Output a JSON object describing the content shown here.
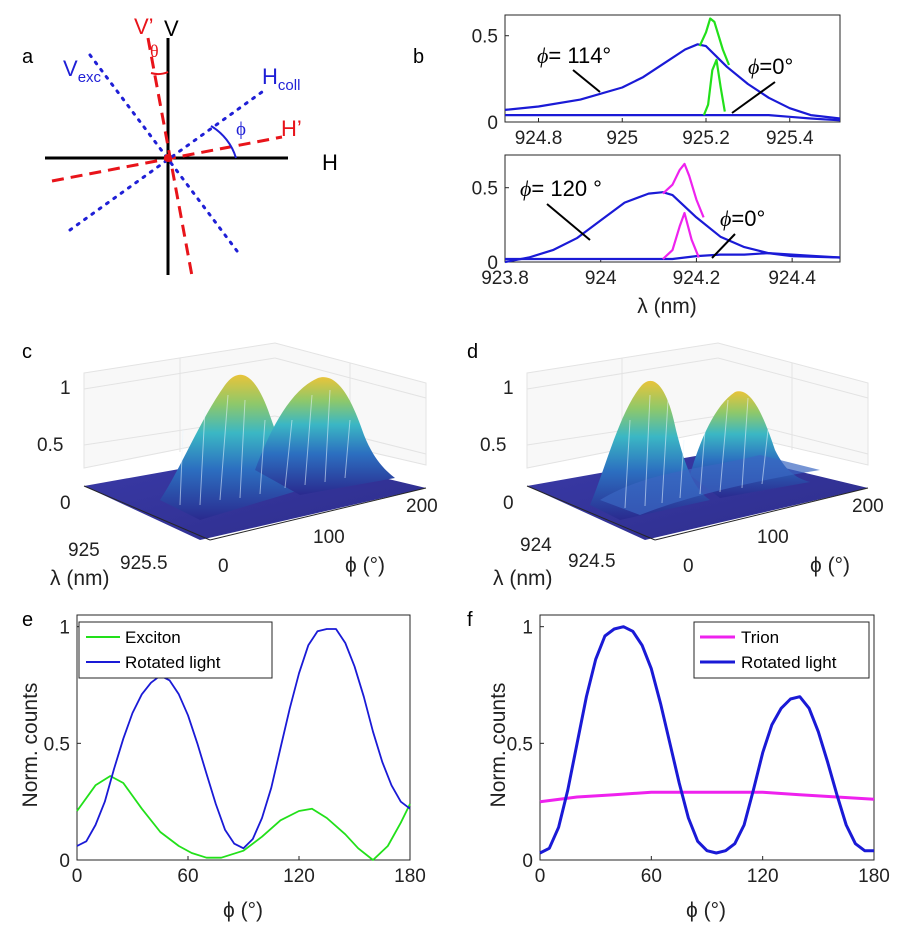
{
  "panel_labels": {
    "a": "a",
    "b": "b",
    "c": "c",
    "d": "d",
    "e": "e",
    "f": "f"
  },
  "diagram": {
    "v_label": "V",
    "h_label": "H",
    "v_prime_label": "V’",
    "h_prime_label": "H’",
    "v_exc_main": "V",
    "v_exc_sub": "exc",
    "h_coll_main": "H",
    "h_coll_sub": "coll",
    "theta_label": "θ",
    "phi_label": "ϕ",
    "colors": {
      "axes": "#000000",
      "rotated": "#e8141a",
      "exc_coll": "#1f1fd6"
    }
  },
  "colors": {
    "blue": "#1a1ad6",
    "green": "#22e01a",
    "magenta": "#ee22ee",
    "axis": "#262626"
  },
  "chart_data": [
    {
      "panel": "b (top)",
      "type": "line",
      "xlim": [
        924.72,
        925.52
      ],
      "ylim": [
        0,
        0.62
      ],
      "xticks": [
        924.8,
        925,
        925.2,
        925.4
      ],
      "yticks": [
        0,
        0.5
      ],
      "xtick_labels": [
        "924.8",
        "925",
        "925.2",
        "925.4"
      ],
      "ytick_labels": [
        "0",
        "0.5"
      ],
      "annotation_left": "= 114°",
      "annotation_right": "=0°",
      "series": [
        {
          "name": "phi=114 blue",
          "color": "#1a1ad6",
          "x": [
            924.72,
            924.8,
            924.9,
            925.0,
            925.05,
            925.1,
            925.15,
            925.18,
            925.2,
            925.25,
            925.3,
            925.35,
            925.4,
            925.45,
            925.52
          ],
          "y": [
            0.07,
            0.09,
            0.13,
            0.2,
            0.26,
            0.34,
            0.42,
            0.45,
            0.44,
            0.32,
            0.22,
            0.14,
            0.08,
            0.04,
            0.02
          ]
        },
        {
          "name": "phi=0 blue",
          "color": "#1a1ad6",
          "x": [
            924.72,
            924.9,
            925.1,
            925.2,
            925.25,
            925.3,
            925.35,
            925.4,
            925.45,
            925.52
          ],
          "y": [
            0.04,
            0.04,
            0.04,
            0.04,
            0.04,
            0.04,
            0.04,
            0.03,
            0.02,
            0.01
          ]
        },
        {
          "name": "phi=114 green peak",
          "color": "#22e01a",
          "x": [
            925.185,
            925.2,
            925.21,
            925.22,
            925.23,
            925.24,
            925.255
          ],
          "y": [
            0.44,
            0.52,
            0.6,
            0.58,
            0.5,
            0.42,
            0.33
          ]
        },
        {
          "name": "phi=0 green peak",
          "color": "#22e01a",
          "x": [
            925.195,
            925.205,
            925.215,
            925.225,
            925.235,
            925.245
          ],
          "y": [
            0.04,
            0.1,
            0.3,
            0.36,
            0.2,
            0.06
          ]
        }
      ]
    },
    {
      "panel": "b (bottom)",
      "type": "line",
      "xlim": [
        923.8,
        924.5
      ],
      "ylim": [
        0,
        0.72
      ],
      "xticks": [
        923.8,
        924,
        924.2,
        924.4
      ],
      "yticks": [
        0,
        0.5
      ],
      "xtick_labels": [
        "923.8",
        "924",
        "924.2",
        "924.4"
      ],
      "ytick_labels": [
        "0",
        "0.5"
      ],
      "xlabel": "λ (nm)",
      "annotation_left": "= 120 °",
      "annotation_right": "=0°",
      "series": [
        {
          "name": "phi=120 blue",
          "color": "#1a1ad6",
          "x": [
            923.8,
            923.85,
            923.9,
            923.95,
            924.0,
            924.05,
            924.1,
            924.13,
            924.15,
            924.2,
            924.25,
            924.3,
            924.35,
            924.4,
            924.5
          ],
          "y": [
            0.0,
            0.03,
            0.08,
            0.16,
            0.28,
            0.4,
            0.46,
            0.47,
            0.45,
            0.3,
            0.17,
            0.1,
            0.06,
            0.04,
            0.03
          ]
        },
        {
          "name": "phi=0 blue",
          "color": "#1a1ad6",
          "x": [
            923.8,
            924.0,
            924.15,
            924.2,
            924.25,
            924.3,
            924.35,
            924.4,
            924.45,
            924.5
          ],
          "y": [
            0.02,
            0.02,
            0.02,
            0.04,
            0.05,
            0.05,
            0.06,
            0.05,
            0.04,
            0.03
          ]
        },
        {
          "name": "phi=120 magenta peak",
          "color": "#ee22ee",
          "x": [
            924.13,
            924.15,
            924.165,
            924.175,
            924.185,
            924.2,
            924.215
          ],
          "y": [
            0.46,
            0.52,
            0.62,
            0.66,
            0.58,
            0.42,
            0.3
          ]
        },
        {
          "name": "phi=0 magenta peak",
          "color": "#ee22ee",
          "x": [
            924.13,
            924.15,
            924.165,
            924.175,
            924.19,
            924.205
          ],
          "y": [
            0.02,
            0.08,
            0.24,
            0.33,
            0.15,
            0.03
          ]
        }
      ]
    },
    {
      "panel": "c",
      "type": "heatmap",
      "zticks": [
        "0",
        "0.5",
        "1"
      ],
      "lambda_ticks": [
        "925",
        "925.5"
      ],
      "phi_ticks": [
        "0",
        "100",
        "200"
      ],
      "xlabel": "ϕ (°)",
      "ylabel": "λ (nm)",
      "peak_phi": [
        45,
        135
      ],
      "peak_lambda": [
        925.2,
        925.2
      ]
    },
    {
      "panel": "d",
      "type": "heatmap",
      "zticks": [
        "0",
        "0.5",
        "1"
      ],
      "lambda_ticks": [
        "924",
        "924.5"
      ],
      "phi_ticks": [
        "0",
        "100",
        "200"
      ],
      "xlabel": "ϕ (°)",
      "ylabel": "λ (nm)",
      "peak_phi": [
        45,
        135
      ],
      "peak_lambda": [
        924.17,
        924.17
      ]
    },
    {
      "panel": "e",
      "type": "line",
      "xlim": [
        0,
        180
      ],
      "ylim": [
        0,
        1.05
      ],
      "xticks": [
        0,
        60,
        120,
        180
      ],
      "yticks": [
        0,
        0.5,
        1
      ],
      "xtick_labels": [
        "0",
        "60",
        "120",
        "180"
      ],
      "ytick_labels": [
        "0",
        "0.5",
        "1"
      ],
      "xlabel": "ϕ (°)",
      "ylabel": "Norm. counts",
      "legend": [
        "Exciton",
        "Rotated light"
      ],
      "legend_position": "top-left",
      "series": [
        {
          "name": "Exciton",
          "color": "#22e01a",
          "x": [
            0,
            10,
            18,
            25,
            35,
            45,
            55,
            62,
            70,
            78,
            90,
            100,
            110,
            120,
            127,
            135,
            145,
            152,
            160,
            168,
            175,
            180
          ],
          "y": [
            0.21,
            0.32,
            0.36,
            0.33,
            0.22,
            0.12,
            0.06,
            0.03,
            0.01,
            0.01,
            0.04,
            0.1,
            0.17,
            0.21,
            0.22,
            0.18,
            0.11,
            0.05,
            0.0,
            0.06,
            0.16,
            0.24
          ]
        },
        {
          "name": "Rotated light",
          "color": "#1a1ad6",
          "x": [
            0,
            5,
            10,
            15,
            20,
            25,
            30,
            35,
            40,
            45,
            50,
            55,
            60,
            65,
            70,
            75,
            80,
            85,
            90,
            95,
            100,
            105,
            110,
            115,
            120,
            125,
            130,
            135,
            140,
            145,
            150,
            155,
            160,
            165,
            170,
            175,
            180
          ],
          "y": [
            0.06,
            0.08,
            0.15,
            0.25,
            0.39,
            0.52,
            0.63,
            0.71,
            0.76,
            0.79,
            0.77,
            0.71,
            0.62,
            0.5,
            0.37,
            0.24,
            0.13,
            0.07,
            0.05,
            0.09,
            0.18,
            0.31,
            0.48,
            0.65,
            0.8,
            0.92,
            0.98,
            0.99,
            0.99,
            0.93,
            0.83,
            0.7,
            0.55,
            0.42,
            0.32,
            0.25,
            0.22
          ]
        }
      ]
    },
    {
      "panel": "f",
      "type": "line",
      "xlim": [
        0,
        180
      ],
      "ylim": [
        0,
        1.05
      ],
      "xticks": [
        0,
        60,
        120,
        180
      ],
      "yticks": [
        0,
        0.5,
        1
      ],
      "xtick_labels": [
        "0",
        "60",
        "120",
        "180"
      ],
      "ytick_labels": [
        "0",
        "0.5",
        "1"
      ],
      "xlabel": "ϕ (°)",
      "ylabel": "Norm. counts",
      "legend": [
        "Trion",
        "Rotated light"
      ],
      "legend_position": "top-right",
      "series": [
        {
          "name": "Trion",
          "color": "#ee22ee",
          "x": [
            0,
            20,
            40,
            60,
            80,
            100,
            120,
            140,
            160,
            180
          ],
          "y": [
            0.25,
            0.27,
            0.28,
            0.29,
            0.29,
            0.29,
            0.29,
            0.28,
            0.27,
            0.26
          ]
        },
        {
          "name": "Rotated light",
          "color": "#1a1ad6",
          "x": [
            0,
            5,
            10,
            15,
            20,
            25,
            30,
            35,
            40,
            45,
            50,
            55,
            60,
            65,
            70,
            75,
            80,
            85,
            90,
            95,
            100,
            105,
            110,
            115,
            120,
            125,
            130,
            135,
            140,
            145,
            150,
            155,
            160,
            165,
            170,
            175,
            180
          ],
          "y": [
            0.03,
            0.05,
            0.14,
            0.3,
            0.5,
            0.7,
            0.86,
            0.96,
            0.99,
            1.0,
            0.98,
            0.92,
            0.82,
            0.67,
            0.5,
            0.33,
            0.18,
            0.08,
            0.04,
            0.03,
            0.04,
            0.07,
            0.15,
            0.3,
            0.46,
            0.58,
            0.65,
            0.69,
            0.7,
            0.65,
            0.55,
            0.42,
            0.28,
            0.15,
            0.07,
            0.04,
            0.04
          ]
        }
      ]
    }
  ]
}
